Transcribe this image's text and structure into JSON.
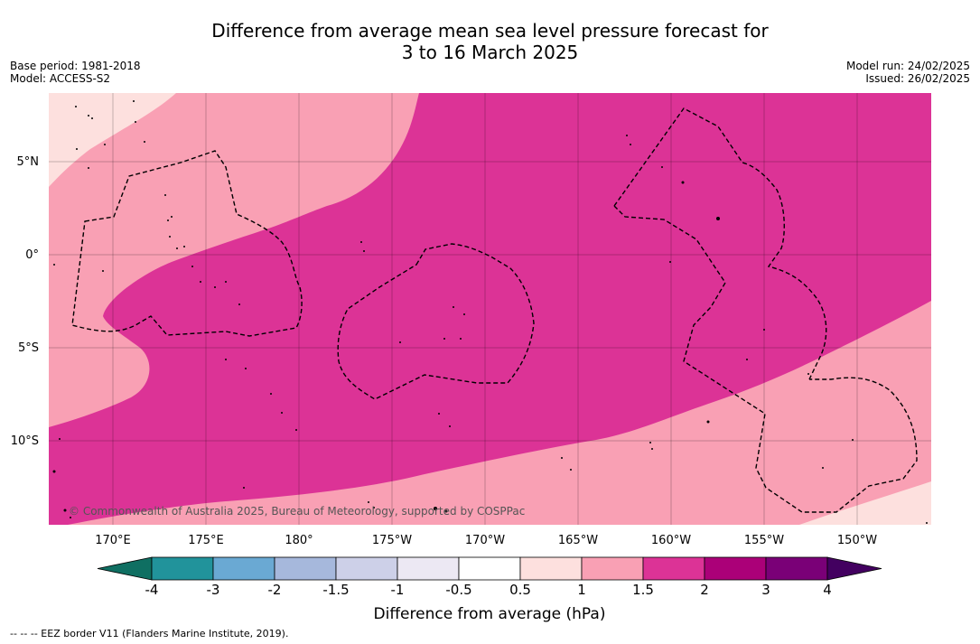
{
  "title": {
    "line1": "Difference from average mean sea level pressure forecast for",
    "line2": "3 to 16 March 2025"
  },
  "meta_left": {
    "base_period": "Base period: 1981-2018",
    "model": "Model: ACCESS-S2"
  },
  "meta_right": {
    "model_run": "Model run: 24/02/2025",
    "issued": "Issued: 26/02/2025"
  },
  "map": {
    "lat_labels": [
      "5°N",
      "0°",
      "5°S",
      "10°S"
    ],
    "lon_labels": [
      "170°E",
      "175°E",
      "180°",
      "175°W",
      "170°W",
      "165°W",
      "160°W",
      "155°W",
      "150°W"
    ],
    "copyright": "© Commonwealth of Australia 2025, Bureau of Meteorology, supported by COSPPac",
    "colors": {
      "band_0_5_1": "#fde0de",
      "band_1_1_5": "#f9a0b4",
      "band_1_5_2": "#dc3396",
      "eez_line": "#000000"
    }
  },
  "colorbar": {
    "ticks": [
      "-4",
      "-3",
      "-2",
      "-1.5",
      "-1",
      "-0.5",
      "0.5",
      "1",
      "1.5",
      "2",
      "3",
      "4"
    ],
    "colors": [
      "#0f6f62",
      "#21939b",
      "#6aa9d3",
      "#a6b8dc",
      "#cdd0e8",
      "#ece8f3",
      "#ffffff",
      "#fde0de",
      "#f9a0b4",
      "#dc3396",
      "#ab0078",
      "#7a0077",
      "#430060"
    ],
    "title": "Difference from average (hPa)"
  },
  "footer": "--  --  -- EEZ border V11 (Flanders Marine Institute, 2019)."
}
